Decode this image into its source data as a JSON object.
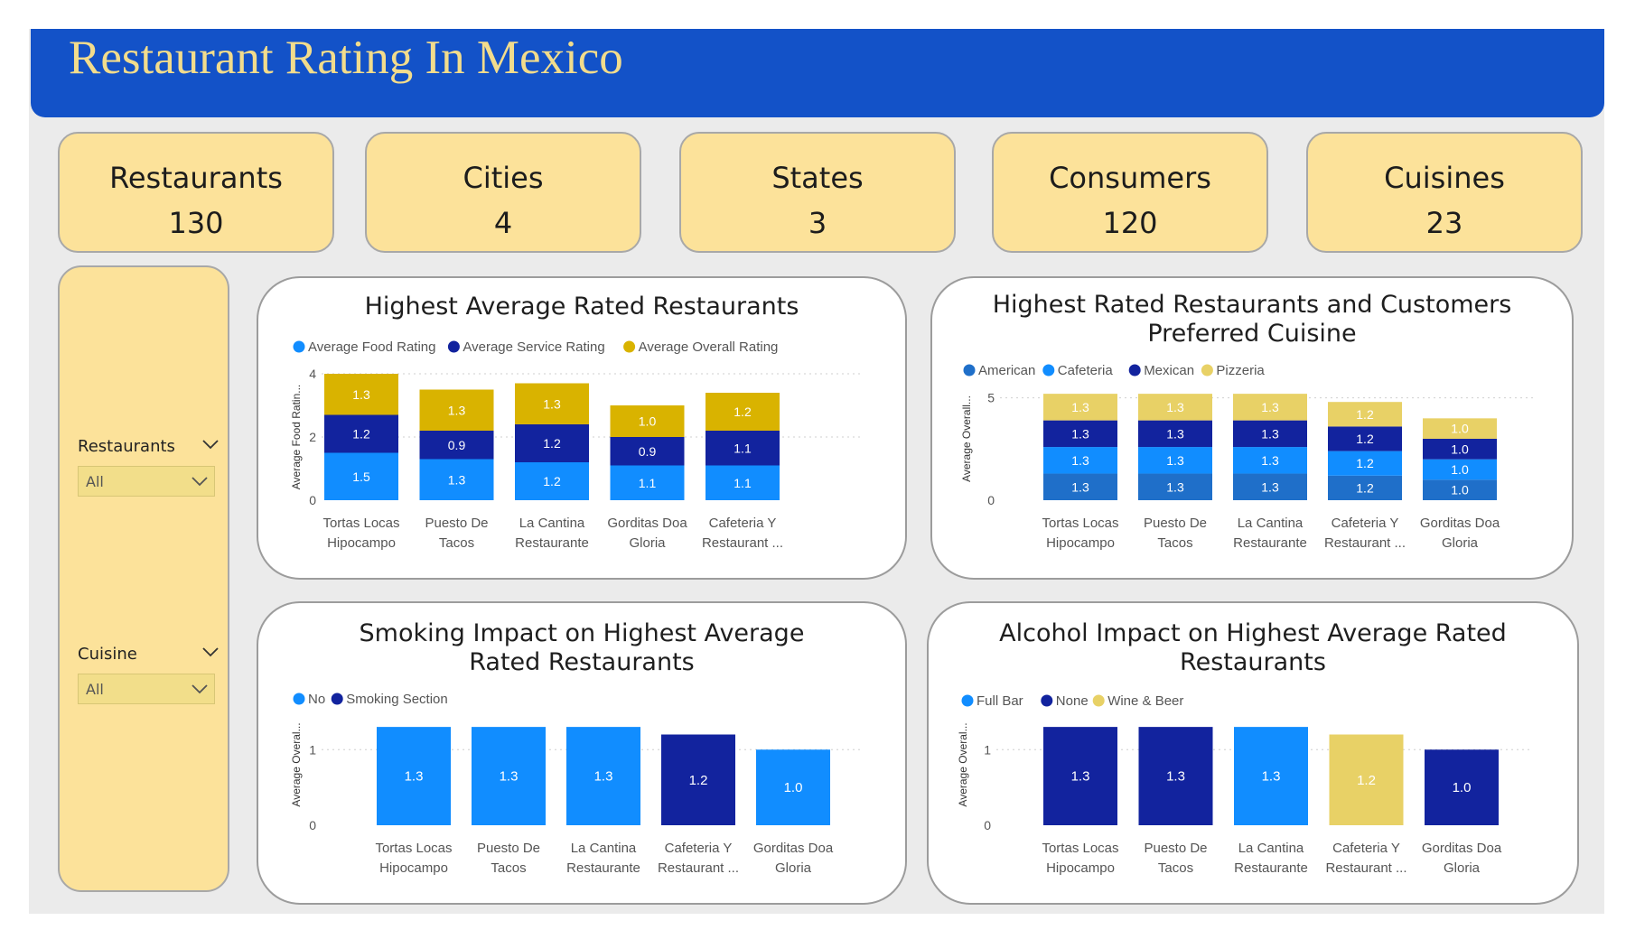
{
  "title": "Restaurant Rating In Mexico",
  "kpis": [
    {
      "label": "Restaurants",
      "value": "130"
    },
    {
      "label": "Cities",
      "value": "4"
    },
    {
      "label": "States",
      "value": "3"
    },
    {
      "label": "Consumers",
      "value": "120"
    },
    {
      "label": "Cuisines",
      "value": "23"
    }
  ],
  "slicers": {
    "restaurants": {
      "label": "Restaurants",
      "value": "All"
    },
    "cuisine": {
      "label": "Cuisine",
      "value": "All"
    }
  },
  "chart_data": [
    {
      "type": "bar",
      "title": "Highest Average Rated Restaurants",
      "ylabel": "Average Food Ratin...",
      "ylim": [
        0,
        4
      ],
      "yticks": [
        0,
        2,
        4
      ],
      "stacked": true,
      "legend": "top-left",
      "categories": [
        [
          "Tortas Locas",
          "Hipocampo"
        ],
        [
          "Puesto De",
          "Tacos"
        ],
        [
          "La Cantina",
          "Restaurante"
        ],
        [
          "Gorditas Doa",
          "Gloria"
        ],
        [
          "Cafeteria Y",
          "Restaurant ..."
        ]
      ],
      "series": [
        {
          "name": "Average Food Rating",
          "color": "#118dff",
          "values": [
            1.5,
            1.3,
            1.2,
            1.1,
            1.1
          ]
        },
        {
          "name": "Average Service Rating",
          "color": "#12239e",
          "values": [
            1.2,
            0.9,
            1.2,
            0.9,
            1.1
          ]
        },
        {
          "name": "Average Overall Rating",
          "color": "#d9b300",
          "values": [
            1.3,
            1.3,
            1.3,
            1.0,
            1.2
          ]
        }
      ]
    },
    {
      "type": "bar",
      "title": "Highest Rated Restaurants and Customers Preferred Cuisine",
      "ylabel": "Average Overall...",
      "ylim": [
        0,
        6
      ],
      "yticks": [
        0,
        5
      ],
      "stacked": true,
      "legend": "top-left",
      "categories": [
        [
          "Tortas Locas",
          "Hipocampo"
        ],
        [
          "Puesto De",
          "Tacos"
        ],
        [
          "La Cantina",
          "Restaurante"
        ],
        [
          "Cafeteria Y",
          "Restaurant ..."
        ],
        [
          "Gorditas Doa",
          "Gloria"
        ]
      ],
      "series": [
        {
          "name": "American",
          "color": "#1f6fc9",
          "legend": true,
          "values": [
            1.3,
            1.3,
            1.3,
            1.2,
            1.0
          ]
        },
        {
          "name": "Cafeteria",
          "color": "#118dff",
          "legend": true,
          "values": [
            1.3,
            1.3,
            1.3,
            1.2,
            1.0
          ]
        },
        {
          "name": "Mexican",
          "color": "#12239e",
          "legend": true,
          "values": [
            1.3,
            1.3,
            1.3,
            1.2,
            1.0
          ]
        },
        {
          "name": "Pizzeria",
          "color": "#e8d166",
          "legend": true,
          "values": [
            1.3,
            1.3,
            1.3,
            1.2,
            1.0
          ]
        }
      ]
    },
    {
      "type": "bar",
      "title": "Smoking Impact on Highest Average Rated Restaurants",
      "ylabel": "Average Overal...",
      "ylim": [
        0,
        1.6
      ],
      "yticks": [
        0,
        1
      ],
      "stacked": false,
      "legend": "top-left",
      "legend_items": [
        {
          "name": "No",
          "color": "#118dff"
        },
        {
          "name": "Smoking Section",
          "color": "#12239e"
        }
      ],
      "categories": [
        [
          "Tortas Locas",
          "Hipocampo"
        ],
        [
          "Puesto De",
          "Tacos"
        ],
        [
          "La Cantina",
          "Restaurante"
        ],
        [
          "Cafeteria Y",
          "Restaurant ..."
        ],
        [
          "Gorditas Doa",
          "Gloria"
        ]
      ],
      "values": [
        1.3,
        1.3,
        1.3,
        1.2,
        1.0
      ],
      "bar_colors": [
        "#118dff",
        "#118dff",
        "#118dff",
        "#12239e",
        "#118dff"
      ]
    },
    {
      "type": "bar",
      "title": "Alcohol Impact on Highest Average Rated Restaurants",
      "ylabel": "Average Overal...",
      "ylim": [
        0,
        1.6
      ],
      "yticks": [
        0,
        1
      ],
      "stacked": false,
      "legend": "top-left",
      "legend_items": [
        {
          "name": "Full Bar",
          "color": "#118dff"
        },
        {
          "name": "None",
          "color": "#12239e"
        },
        {
          "name": "Wine & Beer",
          "color": "#e8d166"
        }
      ],
      "categories": [
        [
          "Tortas Locas",
          "Hipocampo"
        ],
        [
          "Puesto De",
          "Tacos"
        ],
        [
          "La Cantina",
          "Restaurante"
        ],
        [
          "Cafeteria Y",
          "Restaurant ..."
        ],
        [
          "Gorditas Doa",
          "Gloria"
        ]
      ],
      "values": [
        1.3,
        1.3,
        1.3,
        1.2,
        1.0
      ],
      "bar_colors": [
        "#12239e",
        "#12239e",
        "#118dff",
        "#e8d166",
        "#12239e"
      ]
    }
  ]
}
